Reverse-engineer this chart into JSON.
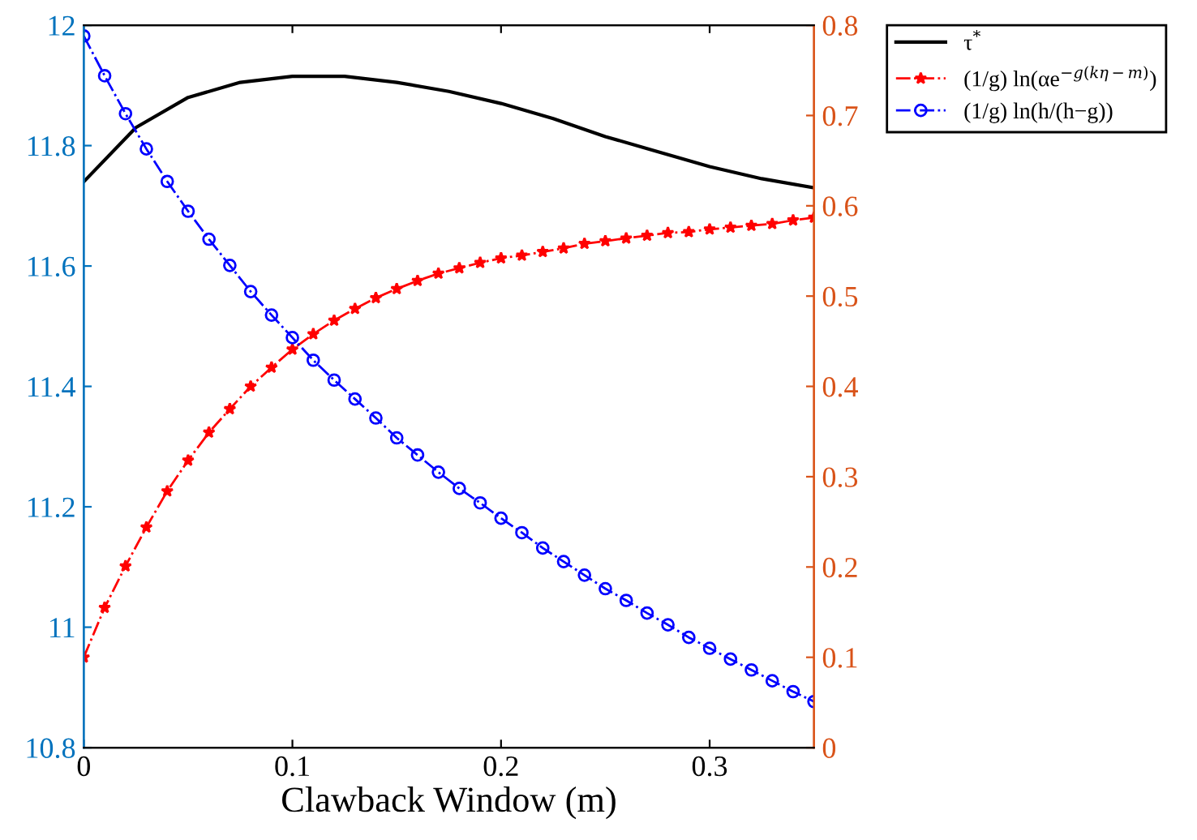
{
  "chart_data": {
    "type": "line",
    "xlabel": "Clawback Window (m)",
    "xlim": [
      0,
      0.35
    ],
    "xticks": [
      0,
      0.1,
      0.2,
      0.3
    ],
    "ylim": [
      10.8,
      12
    ],
    "yticks": [
      {
        "value": 10.8,
        "label": "10.8"
      },
      11,
      {
        "value": 11.2,
        "label": "11.2"
      },
      {
        "value": 11.4,
        "label": "11.4"
      },
      {
        "value": 11.6,
        "label": "11.6"
      },
      {
        "value": 11.8,
        "label": "11.8"
      },
      12
    ],
    "y2lim": [
      0,
      0.8
    ],
    "y2ticks": [
      0,
      0.1,
      0.2,
      0.3,
      0.4,
      0.5,
      0.6,
      0.7,
      0.8
    ],
    "grid": false,
    "legend": "top right",
    "series": [
      {
        "name": "τ$^{*}$",
        "color": "#000000",
        "marker": "none",
        "line_style": "solid",
        "x": [
          0,
          0.025,
          0.05,
          0.075,
          0.1,
          0.125,
          0.15,
          0.175,
          0.2,
          0.225,
          0.25,
          0.275,
          0.3,
          0.325,
          0.35
        ],
        "values": [
          11.74,
          11.83,
          11.88,
          11.905,
          11.915,
          11.915,
          11.905,
          11.89,
          11.87,
          11.845,
          11.815,
          11.79,
          11.765,
          11.745,
          11.73
        ]
      },
      {
        "name": "(1/g) ln(αe$^{−g(kη−m)}$)",
        "color": "#ff0000",
        "marker": "star",
        "line_style": "dashdot",
        "axis": "y2",
        "x": [
          0,
          0.01,
          0.02,
          0.03,
          0.04,
          0.05,
          0.06,
          0.07,
          0.08,
          0.09,
          0.1,
          0.11,
          0.12,
          0.13,
          0.14,
          0.15,
          0.16,
          0.17,
          0.18,
          0.19,
          0.2,
          0.21,
          0.22,
          0.23,
          0.24,
          0.25,
          0.26,
          0.27,
          0.28,
          0.29,
          0.3,
          0.31,
          0.32,
          0.33,
          0.34,
          0.35
        ],
        "values": [
          0.1,
          0.155,
          0.201,
          0.244,
          0.284,
          0.318,
          0.349,
          0.375,
          0.4,
          0.421,
          0.441,
          0.458,
          0.473,
          0.486,
          0.498,
          0.508,
          0.517,
          0.525,
          0.531,
          0.537,
          0.542,
          0.545,
          0.549,
          0.553,
          0.558,
          0.561,
          0.564,
          0.567,
          0.57,
          0.571,
          0.574,
          0.576,
          0.578,
          0.58,
          0.584,
          0.587
        ]
      },
      {
        "name": "(1/g) ln(h/(h−g))",
        "color": "#0000ff",
        "marker": "circle",
        "line_style": "dashdot",
        "axis": "y2",
        "x": [
          0,
          0.01,
          0.02,
          0.03,
          0.04,
          0.05,
          0.06,
          0.07,
          0.08,
          0.09,
          0.1,
          0.11,
          0.12,
          0.13,
          0.14,
          0.15,
          0.16,
          0.17,
          0.18,
          0.19,
          0.2,
          0.21,
          0.22,
          0.23,
          0.24,
          0.25,
          0.26,
          0.27,
          0.28,
          0.29,
          0.3,
          0.31,
          0.32,
          0.33,
          0.34,
          0.35
        ],
        "values": [
          0.788,
          0.744,
          0.702,
          0.663,
          0.627,
          0.594,
          0.563,
          0.534,
          0.505,
          0.479,
          0.454,
          0.429,
          0.407,
          0.386,
          0.365,
          0.343,
          0.324,
          0.305,
          0.287,
          0.271,
          0.254,
          0.238,
          0.221,
          0.206,
          0.191,
          0.176,
          0.163,
          0.149,
          0.136,
          0.122,
          0.11,
          0.098,
          0.086,
          0.074,
          0.062,
          0.051
        ]
      }
    ]
  }
}
